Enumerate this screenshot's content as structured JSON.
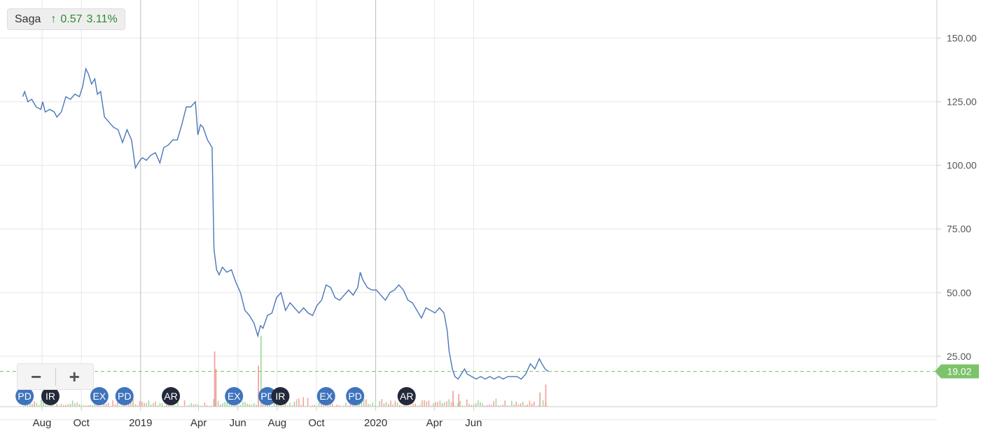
{
  "legend": {
    "symbol": "Saga",
    "arrow": "↑",
    "change": "0.57",
    "change_pct": "3.11%"
  },
  "zoom": {
    "out_label": "−",
    "in_label": "+"
  },
  "colors": {
    "line": "#4a76b8",
    "grid": "#e6e6e6",
    "vol_up": "#a5d8a0",
    "vol_down": "#f2a5a0",
    "last_price": "#7cc36a",
    "event_blue": "#3f74bd",
    "event_dark": "#23283a"
  },
  "chart_data": {
    "type": "line",
    "title": "",
    "xlabel": "",
    "ylabel": "",
    "ylim": [
      0,
      160
    ],
    "y_ticks": [
      "25.00",
      "50.00",
      "75.00",
      "100.00",
      "125.00",
      "150.00"
    ],
    "x_ticks": [
      {
        "date": "2018-08-01",
        "label": "Aug"
      },
      {
        "date": "2018-10-01",
        "label": "Oct"
      },
      {
        "date": "2019-01-01",
        "label": "2019"
      },
      {
        "date": "2019-04-01",
        "label": "Apr"
      },
      {
        "date": "2019-06-01",
        "label": "Jun"
      },
      {
        "date": "2019-08-01",
        "label": "Aug"
      },
      {
        "date": "2019-10-01",
        "label": "Oct"
      },
      {
        "date": "2020-01-01",
        "label": "2020"
      },
      {
        "date": "2020-04-01",
        "label": "Apr"
      },
      {
        "date": "2020-06-01",
        "label": "Jun"
      }
    ],
    "major_gridlines": [
      "2019-01-01",
      "2020-01-01"
    ],
    "last_price": "19.02",
    "series": [
      {
        "points": [
          [
            "2018-07-02",
            127
          ],
          [
            "2018-07-05",
            129
          ],
          [
            "2018-07-10",
            125
          ],
          [
            "2018-07-16",
            126
          ],
          [
            "2018-07-23",
            123
          ],
          [
            "2018-07-30",
            122
          ],
          [
            "2018-08-02",
            125
          ],
          [
            "2018-08-06",
            121
          ],
          [
            "2018-08-13",
            122
          ],
          [
            "2018-08-20",
            121
          ],
          [
            "2018-08-24",
            119
          ],
          [
            "2018-08-31",
            121
          ],
          [
            "2018-09-07",
            127
          ],
          [
            "2018-09-14",
            126
          ],
          [
            "2018-09-21",
            128
          ],
          [
            "2018-09-28",
            127
          ],
          [
            "2018-10-03",
            131
          ],
          [
            "2018-10-08",
            138
          ],
          [
            "2018-10-12",
            136
          ],
          [
            "2018-10-17",
            132
          ],
          [
            "2018-10-22",
            134
          ],
          [
            "2018-10-26",
            128
          ],
          [
            "2018-10-31",
            129
          ],
          [
            "2018-11-06",
            119
          ],
          [
            "2018-11-13",
            117
          ],
          [
            "2018-11-20",
            115
          ],
          [
            "2018-11-27",
            114
          ],
          [
            "2018-12-04",
            109
          ],
          [
            "2018-12-11",
            114
          ],
          [
            "2018-12-18",
            110
          ],
          [
            "2018-12-24",
            99
          ],
          [
            "2018-12-31",
            102
          ],
          [
            "2019-01-04",
            103
          ],
          [
            "2019-01-10",
            102
          ],
          [
            "2019-01-17",
            104
          ],
          [
            "2019-01-24",
            105
          ],
          [
            "2019-01-31",
            101
          ],
          [
            "2019-02-06",
            107
          ],
          [
            "2019-02-13",
            108
          ],
          [
            "2019-02-20",
            110
          ],
          [
            "2019-02-27",
            110
          ],
          [
            "2019-03-06",
            116
          ],
          [
            "2019-03-13",
            123
          ],
          [
            "2019-03-20",
            123
          ],
          [
            "2019-03-27",
            125
          ],
          [
            "2019-03-31",
            112
          ],
          [
            "2019-04-04",
            116
          ],
          [
            "2019-04-08",
            115
          ],
          [
            "2019-04-15",
            110
          ],
          [
            "2019-04-22",
            107
          ],
          [
            "2019-04-25",
            67
          ],
          [
            "2019-04-29",
            59
          ],
          [
            "2019-05-03",
            57
          ],
          [
            "2019-05-08",
            60
          ],
          [
            "2019-05-15",
            58
          ],
          [
            "2019-05-22",
            59
          ],
          [
            "2019-05-29",
            54
          ],
          [
            "2019-06-05",
            50
          ],
          [
            "2019-06-12",
            43
          ],
          [
            "2019-06-19",
            41
          ],
          [
            "2019-06-26",
            38
          ],
          [
            "2019-07-02",
            33
          ],
          [
            "2019-07-06",
            37
          ],
          [
            "2019-07-10",
            36
          ],
          [
            "2019-07-17",
            41
          ],
          [
            "2019-07-24",
            42
          ],
          [
            "2019-07-31",
            48
          ],
          [
            "2019-08-07",
            50
          ],
          [
            "2019-08-14",
            43
          ],
          [
            "2019-08-21",
            46
          ],
          [
            "2019-08-28",
            44
          ],
          [
            "2019-09-04",
            42
          ],
          [
            "2019-09-11",
            44
          ],
          [
            "2019-09-18",
            42
          ],
          [
            "2019-09-25",
            41
          ],
          [
            "2019-10-02",
            45
          ],
          [
            "2019-10-09",
            47
          ],
          [
            "2019-10-16",
            53
          ],
          [
            "2019-10-23",
            52
          ],
          [
            "2019-10-30",
            48
          ],
          [
            "2019-11-06",
            47
          ],
          [
            "2019-11-13",
            49
          ],
          [
            "2019-11-20",
            51
          ],
          [
            "2019-11-27",
            49
          ],
          [
            "2019-12-04",
            52
          ],
          [
            "2019-12-08",
            58
          ],
          [
            "2019-12-12",
            55
          ],
          [
            "2019-12-19",
            52
          ],
          [
            "2019-12-26",
            51
          ],
          [
            "2020-01-02",
            51
          ],
          [
            "2020-01-09",
            49
          ],
          [
            "2020-01-16",
            47
          ],
          [
            "2020-01-23",
            50
          ],
          [
            "2020-01-30",
            51
          ],
          [
            "2020-02-06",
            53
          ],
          [
            "2020-02-13",
            51
          ],
          [
            "2020-02-20",
            47
          ],
          [
            "2020-02-27",
            46
          ],
          [
            "2020-03-05",
            43
          ],
          [
            "2020-03-12",
            40
          ],
          [
            "2020-03-19",
            44
          ],
          [
            "2020-03-26",
            43
          ],
          [
            "2020-04-02",
            42
          ],
          [
            "2020-04-09",
            44
          ],
          [
            "2020-04-16",
            42
          ],
          [
            "2020-04-21",
            35
          ],
          [
            "2020-04-24",
            27
          ],
          [
            "2020-04-29",
            20
          ],
          [
            "2020-05-03",
            17
          ],
          [
            "2020-05-08",
            16
          ],
          [
            "2020-05-13",
            18
          ],
          [
            "2020-05-18",
            20
          ],
          [
            "2020-05-22",
            18
          ],
          [
            "2020-05-29",
            17
          ],
          [
            "2020-06-05",
            16
          ],
          [
            "2020-06-12",
            17
          ],
          [
            "2020-06-19",
            16
          ],
          [
            "2020-06-26",
            17
          ],
          [
            "2020-07-03",
            16
          ],
          [
            "2020-07-10",
            17
          ],
          [
            "2020-07-17",
            16
          ],
          [
            "2020-07-24",
            17
          ],
          [
            "2020-07-31",
            17
          ],
          [
            "2020-08-07",
            17
          ],
          [
            "2020-08-14",
            16
          ],
          [
            "2020-08-21",
            18
          ],
          [
            "2020-08-28",
            22
          ],
          [
            "2020-09-04",
            20
          ],
          [
            "2020-09-11",
            24
          ],
          [
            "2020-09-15",
            22
          ],
          [
            "2020-09-20",
            20
          ],
          [
            "2020-09-25",
            19.02
          ]
        ]
      }
    ],
    "volume_spikes": [
      [
        "2019-04-25",
        35
      ],
      [
        "2019-04-27",
        24
      ],
      [
        "2019-07-02",
        26
      ],
      [
        "2019-07-06",
        45
      ],
      [
        "2020-04-29",
        10
      ],
      [
        "2020-05-08",
        8
      ],
      [
        "2020-09-11",
        9
      ],
      [
        "2020-09-20",
        14
      ]
    ],
    "events": [
      {
        "label": "PD",
        "date": "2018-07-05",
        "style": "blue"
      },
      {
        "label": "IR",
        "date": "2018-08-14",
        "style": "dark"
      },
      {
        "label": "EX",
        "date": "2018-10-29",
        "style": "blue"
      },
      {
        "label": "PD",
        "date": "2018-12-07",
        "style": "blue"
      },
      {
        "label": "AR",
        "date": "2019-02-17",
        "style": "dark"
      },
      {
        "label": "EX",
        "date": "2019-05-26",
        "style": "blue"
      },
      {
        "label": "PD",
        "date": "2019-07-17",
        "style": "blue"
      },
      {
        "label": "IR",
        "date": "2019-08-06",
        "style": "dark"
      },
      {
        "label": "EX",
        "date": "2019-10-16",
        "style": "blue"
      },
      {
        "label": "PD",
        "date": "2019-11-30",
        "style": "blue"
      },
      {
        "label": "AR",
        "date": "2020-02-18",
        "style": "dark"
      }
    ]
  }
}
